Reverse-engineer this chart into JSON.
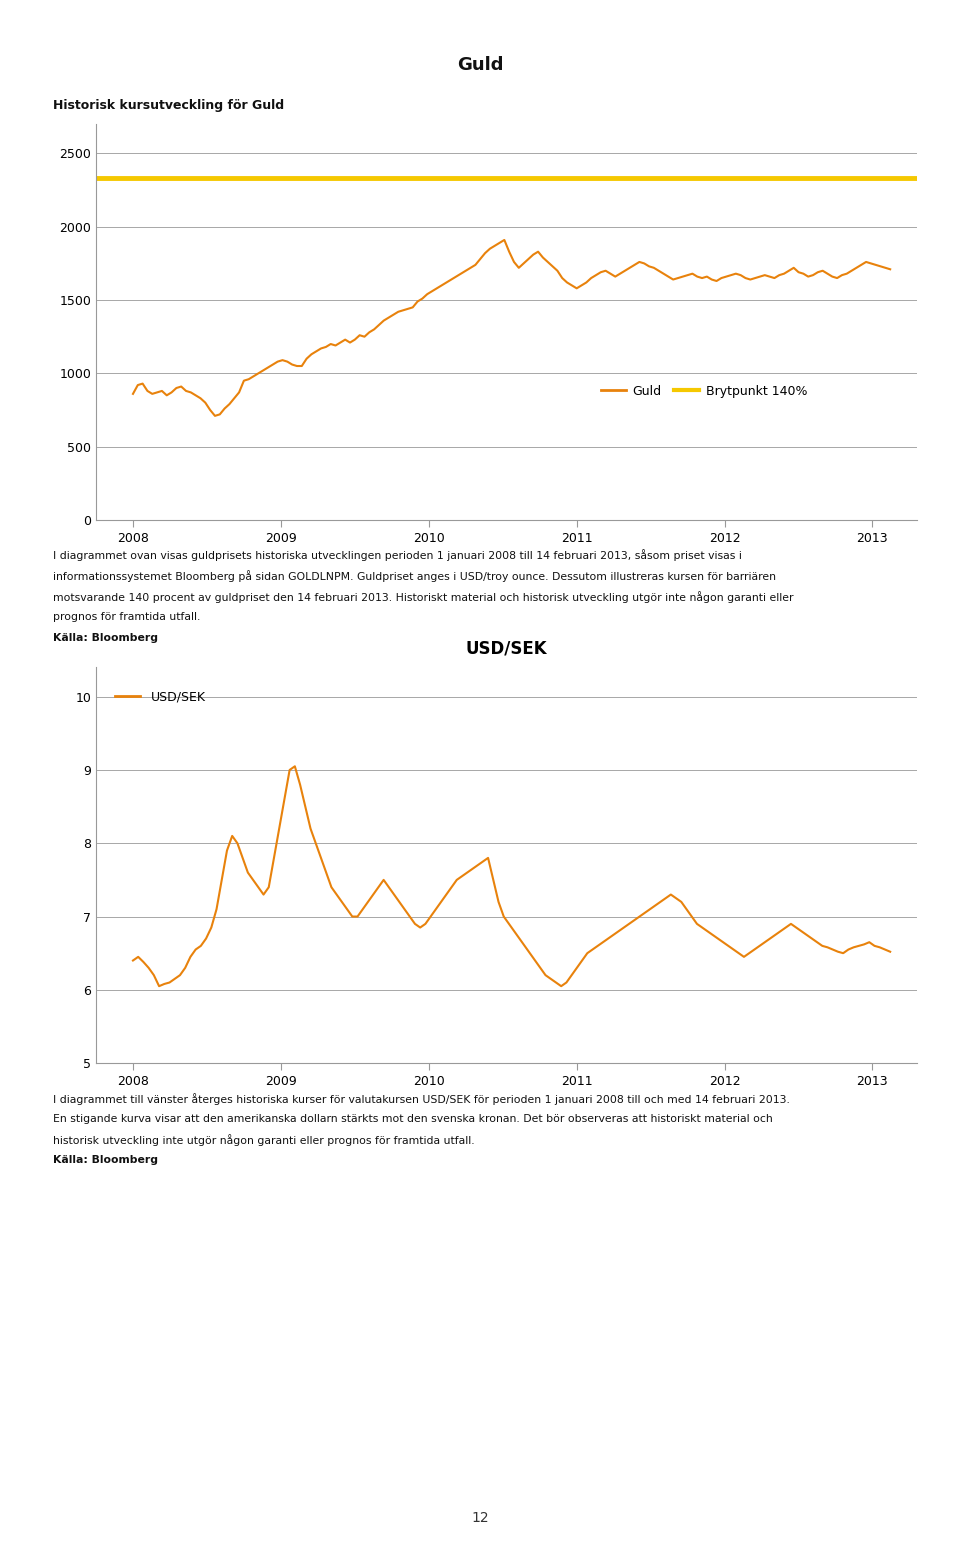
{
  "page_title": "Guld",
  "chart1_subtitle": "Historisk kursutveckling för Guld",
  "chart2_title": "USD/SEK",
  "chart2_legend_label": "USD/SEK",
  "chart1_yticks": [
    0,
    500,
    1000,
    1500,
    2000,
    2500
  ],
  "chart1_ylim": [
    0,
    2700
  ],
  "chart1_xticks": [
    2008,
    2009,
    2010,
    2011,
    2012,
    2013
  ],
  "chart2_yticks": [
    5,
    6,
    7,
    8,
    9,
    10
  ],
  "chart2_ylim": [
    5.0,
    10.4
  ],
  "chart2_xticks": [
    2008,
    2009,
    2010,
    2011,
    2012,
    2013
  ],
  "gold_color": "#E8820C",
  "barrier_color": "#F5C800",
  "usdsek_color": "#E8820C",
  "barrier_value": 2330,
  "legend1_labels": [
    "Guld",
    "Brytpunkt 140%"
  ],
  "text1_lines": [
    "I diagrammet ovan visas guldprisets historiska utvecklingen perioden 1 januari 2008 till 14 februari 2013, såsom priset visas i",
    "informationssystemet Bloomberg på sidan GOLDLNPM. Guldpriset anges i USD/troy ounce. Dessutom illustreras kursen för barriären",
    "motsvarande 140 procent av guldpriset den 14 februari 2013. Historiskt material och historisk utveckling utgör inte någon garanti eller",
    "prognos för framtida utfall."
  ],
  "text1_source": "Källa: Bloomberg",
  "text2_lines": [
    "I diagrammet till vänster återges historiska kurser för valutakursen USD/SEK för perioden 1 januari 2008 till och med 14 februari 2013.",
    "En stigande kurva visar att den amerikanska dollarn stärkts mot den svenska kronan. Det bör observeras att historiskt material och",
    "historisk utveckling inte utgör någon garanti eller prognos för framtida utfall."
  ],
  "text2_source": "Källa: Bloomberg",
  "page_number": "12",
  "background_color": "#ffffff",
  "grid_color": "#999999",
  "axis_color": "#999999",
  "topbar_color": "#BBBBBB",
  "bottomline_color": "#AAAAAA",
  "gold_data": [
    860,
    920,
    930,
    880,
    860,
    870,
    880,
    850,
    870,
    900,
    910,
    880,
    870,
    850,
    830,
    800,
    750,
    710,
    720,
    760,
    790,
    830,
    870,
    950,
    960,
    980,
    1000,
    1020,
    1040,
    1060,
    1080,
    1090,
    1080,
    1060,
    1050,
    1050,
    1100,
    1130,
    1150,
    1170,
    1180,
    1200,
    1190,
    1210,
    1230,
    1210,
    1230,
    1260,
    1250,
    1280,
    1300,
    1330,
    1360,
    1380,
    1400,
    1420,
    1430,
    1440,
    1450,
    1490,
    1510,
    1540,
    1560,
    1580,
    1600,
    1620,
    1640,
    1660,
    1680,
    1700,
    1720,
    1740,
    1780,
    1820,
    1850,
    1870,
    1890,
    1910,
    1830,
    1760,
    1720,
    1750,
    1780,
    1810,
    1830,
    1790,
    1760,
    1730,
    1700,
    1650,
    1620,
    1600,
    1580,
    1600,
    1620,
    1650,
    1670,
    1690,
    1700,
    1680,
    1660,
    1680,
    1700,
    1720,
    1740,
    1760,
    1750,
    1730,
    1720,
    1700,
    1680,
    1660,
    1640,
    1650,
    1660,
    1670,
    1680,
    1660,
    1650,
    1660,
    1640,
    1630,
    1650,
    1660,
    1670,
    1680,
    1670,
    1650,
    1640,
    1650,
    1660,
    1670,
    1660,
    1650,
    1670,
    1680,
    1700,
    1720,
    1690,
    1680,
    1660,
    1670,
    1690,
    1700,
    1680,
    1660,
    1650,
    1670,
    1680,
    1700,
    1720,
    1740,
    1760,
    1750,
    1740,
    1730,
    1720,
    1710
  ],
  "usdsek_data": [
    6.4,
    6.45,
    6.38,
    6.3,
    6.2,
    6.05,
    6.08,
    6.1,
    6.15,
    6.2,
    6.3,
    6.45,
    6.55,
    6.6,
    6.7,
    6.85,
    7.1,
    7.5,
    7.9,
    8.1,
    8.0,
    7.8,
    7.6,
    7.5,
    7.4,
    7.3,
    7.4,
    7.8,
    8.2,
    8.6,
    9.0,
    9.05,
    8.8,
    8.5,
    8.2,
    8.0,
    7.8,
    7.6,
    7.4,
    7.3,
    7.2,
    7.1,
    7.0,
    7.0,
    7.1,
    7.2,
    7.3,
    7.4,
    7.5,
    7.4,
    7.3,
    7.2,
    7.1,
    7.0,
    6.9,
    6.85,
    6.9,
    7.0,
    7.1,
    7.2,
    7.3,
    7.4,
    7.5,
    7.55,
    7.6,
    7.65,
    7.7,
    7.75,
    7.8,
    7.5,
    7.2,
    7.0,
    6.9,
    6.8,
    6.7,
    6.6,
    6.5,
    6.4,
    6.3,
    6.2,
    6.15,
    6.1,
    6.05,
    6.1,
    6.2,
    6.3,
    6.4,
    6.5,
    6.55,
    6.6,
    6.65,
    6.7,
    6.75,
    6.8,
    6.85,
    6.9,
    6.95,
    7.0,
    7.05,
    7.1,
    7.15,
    7.2,
    7.25,
    7.3,
    7.25,
    7.2,
    7.1,
    7.0,
    6.9,
    6.85,
    6.8,
    6.75,
    6.7,
    6.65,
    6.6,
    6.55,
    6.5,
    6.45,
    6.5,
    6.55,
    6.6,
    6.65,
    6.7,
    6.75,
    6.8,
    6.85,
    6.9,
    6.85,
    6.8,
    6.75,
    6.7,
    6.65,
    6.6,
    6.58,
    6.55,
    6.52,
    6.5,
    6.55,
    6.58,
    6.6,
    6.62,
    6.65,
    6.6,
    6.58,
    6.55,
    6.52
  ]
}
